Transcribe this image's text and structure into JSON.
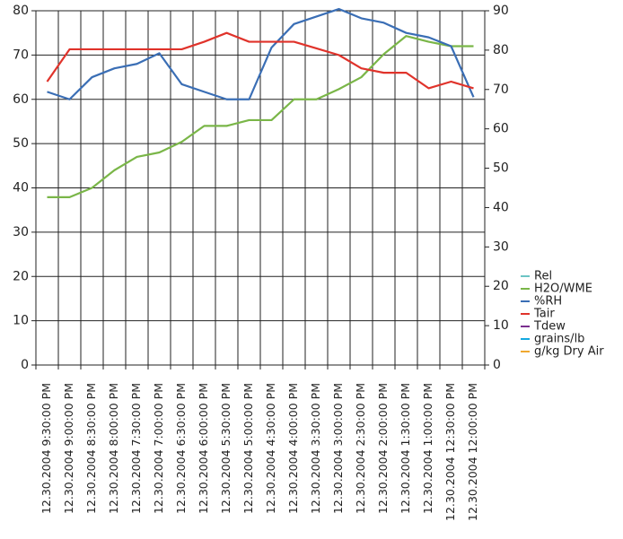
{
  "chart_data": {
    "type": "line",
    "categories": [
      "12.30.2004 9:30:00 PM",
      "12.30.2004 9:00:00 PM",
      "12.30.2004 8:30:00 PM",
      "12.30.2004 8:00:00 PM",
      "12.30.2004 7:30:00 PM",
      "12.30.2004 7:00:00 PM",
      "12.30.2004 6:30:00 PM",
      "12.30.2004 6:00:00 PM",
      "12.30.2004 5:30:00 PM",
      "12.30.2004 5:00:00 PM",
      "12.30.2004 4:30:00 PM",
      "12.30.2004 4:00:00 PM",
      "12.30.2004 3:30:00 PM",
      "12.30.2004 3:00:00 PM",
      "12.30.2004 2:30:00 PM",
      "12.30.2004 2:00:00 PM",
      "12.30.2004 1:30:00 PM",
      "12.30.2004 1:00:00 PM",
      "12.30.2004 12:30:00 PM",
      "12.30.2004 12:00:00 PM"
    ],
    "series": [
      {
        "name": "Rel",
        "color": "#6cc4c4",
        "values": [
          null,
          null,
          null,
          null,
          null,
          null,
          null,
          null,
          null,
          null,
          null,
          null,
          null,
          null,
          null,
          null,
          null,
          null,
          null,
          null
        ]
      },
      {
        "name": "H2O/WME",
        "color": "#7ab648",
        "values": [
          37.9,
          37.9,
          40,
          44,
          47,
          48,
          50.4,
          54,
          54,
          55.3,
          55.3,
          60,
          60,
          62.3,
          65,
          70.2,
          74.3,
          73,
          72,
          72
        ]
      },
      {
        "name": "%RH",
        "color": "#3a6eb5",
        "values": [
          61.7,
          60,
          65,
          67,
          68,
          70.4,
          63.4,
          61.7,
          60,
          60,
          71.7,
          77,
          78.7,
          80.4,
          78.3,
          77.3,
          75,
          74,
          72,
          60.5
        ]
      },
      {
        "name": "Tair",
        "color": "#e0332b",
        "values": [
          64,
          71.3,
          71.3,
          71.3,
          71.3,
          71.3,
          71.3,
          73,
          75,
          73,
          73,
          73,
          71.5,
          70,
          67,
          66,
          66,
          62.5,
          64,
          62.5
        ]
      },
      {
        "name": "Tdew",
        "color": "#7a2f8f",
        "values": [
          null,
          null,
          null,
          null,
          null,
          null,
          null,
          null,
          null,
          null,
          null,
          null,
          null,
          null,
          null,
          null,
          null,
          null,
          null,
          null
        ]
      },
      {
        "name": "grains/lb",
        "color": "#14a9e0",
        "values": [
          null,
          null,
          null,
          null,
          null,
          null,
          null,
          null,
          null,
          null,
          null,
          null,
          null,
          null,
          null,
          null,
          null,
          null,
          null,
          null
        ]
      },
      {
        "name": "g/kg Dry Air",
        "color": "#f0a830",
        "values": [
          null,
          null,
          null,
          null,
          null,
          null,
          null,
          null,
          null,
          null,
          null,
          null,
          null,
          null,
          null,
          null,
          null,
          null,
          null,
          null
        ]
      }
    ],
    "ylim": [
      0,
      80
    ],
    "yticks": [
      0,
      10,
      20,
      30,
      40,
      50,
      60,
      70,
      80
    ],
    "y2lim": [
      0,
      90
    ],
    "y2ticks": [
      0,
      10,
      20,
      30,
      40,
      50,
      60,
      70,
      80,
      90
    ],
    "grid": true,
    "legend": "right"
  }
}
